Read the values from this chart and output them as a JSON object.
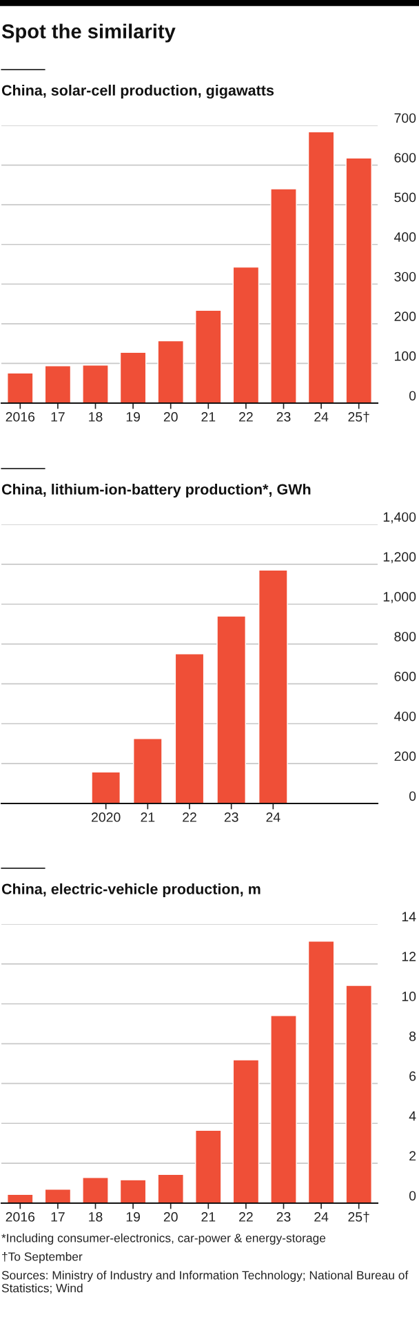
{
  "chart_data": [
    {
      "type": "bar",
      "title": "Spot the similarity",
      "subtitle": "China, solar-cell production, gigawatts",
      "categories": [
        "2016",
        "17",
        "18",
        "19",
        "20",
        "21",
        "22",
        "23",
        "24",
        "25†"
      ],
      "values": [
        76,
        94,
        96,
        128,
        157,
        234,
        343,
        540,
        684,
        618
      ],
      "color": "#ef4f37",
      "ylim": [
        0,
        700
      ],
      "yticks": [
        0,
        100,
        200,
        300,
        400,
        500,
        600,
        700
      ],
      "grid": "y"
    },
    {
      "type": "bar",
      "subtitle": "China, lithium-ion-battery production*, GWh",
      "categories": [
        null,
        null,
        "2020",
        "21",
        "22",
        "23",
        "24",
        null,
        null
      ],
      "values": [
        null,
        null,
        158,
        326,
        751,
        940,
        1171,
        null,
        null
      ],
      "color": "#ef4f37",
      "ylim": [
        0,
        1400
      ],
      "yticks": [
        0,
        200,
        400,
        600,
        800,
        {
          "value": 1000,
          "label": "1,000"
        },
        {
          "value": 1200,
          "label": "1,200"
        },
        {
          "value": 1400,
          "label": "1,400"
        }
      ],
      "grid": "y"
    },
    {
      "type": "bar",
      "subtitle": "China, electric-vehicle production, m",
      "categories": [
        "2016",
        "17",
        "18",
        "19",
        "20",
        "21",
        "22",
        "23",
        "24",
        "25†"
      ],
      "values": [
        0.44,
        0.7,
        1.29,
        1.17,
        1.44,
        3.65,
        7.19,
        9.41,
        13.14,
        10.92
      ],
      "color": "#ef4f37",
      "ylim": [
        0,
        14
      ],
      "yticks": [
        0,
        2,
        4,
        6,
        8,
        10,
        12,
        14
      ],
      "grid": "y",
      "annotations": [
        "*Including consumer-electronics, car-power & energy-storage",
        "†To September",
        "Sources: Ministry of Industry and Information Technology; National Bureau of Statistics; Wind"
      ]
    }
  ]
}
